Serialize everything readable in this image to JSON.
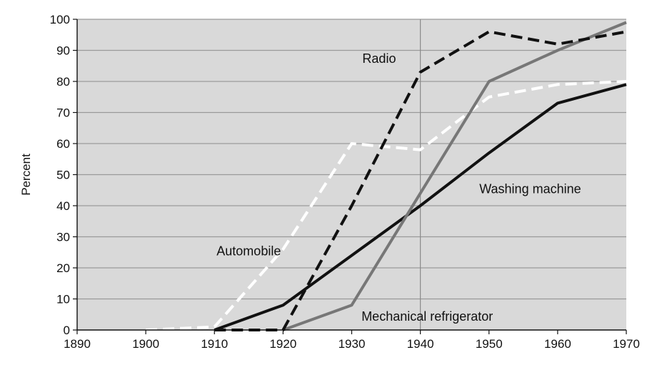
{
  "chart_data": {
    "type": "line",
    "title": "",
    "xlabel": "",
    "ylabel": "Percent",
    "xlim": [
      1890,
      1970
    ],
    "ylim": [
      0,
      100
    ],
    "x_ticks": [
      1890,
      1900,
      1910,
      1920,
      1930,
      1940,
      1950,
      1960,
      1970
    ],
    "y_ticks": [
      0,
      10,
      20,
      30,
      40,
      50,
      60,
      70,
      80,
      90,
      100
    ],
    "grid": true,
    "background_color": "#d9d9d9",
    "reference_line_x": 1940,
    "legend": "none",
    "series": [
      {
        "name": "Automobile",
        "color": "#ffffff",
        "style": "dashed",
        "points": [
          [
            1900,
            0
          ],
          [
            1910,
            1
          ],
          [
            1920,
            26
          ],
          [
            1930,
            60
          ],
          [
            1940,
            58
          ],
          [
            1950,
            75
          ],
          [
            1960,
            79
          ],
          [
            1970,
            80
          ]
        ]
      },
      {
        "name": "Washing machine",
        "color": "#111111",
        "style": "solid",
        "points": [
          [
            1910,
            0
          ],
          [
            1920,
            8
          ],
          [
            1930,
            24
          ],
          [
            1940,
            40
          ],
          [
            1950,
            57
          ],
          [
            1960,
            73
          ],
          [
            1970,
            79
          ]
        ]
      },
      {
        "name": "Mechanical refrigerator",
        "color": "#777777",
        "style": "solid",
        "points": [
          [
            1920,
            0
          ],
          [
            1930,
            8
          ],
          [
            1940,
            44
          ],
          [
            1950,
            80
          ],
          [
            1960,
            90
          ],
          [
            1970,
            99
          ]
        ]
      },
      {
        "name": "Radio",
        "color": "#111111",
        "style": "dashed",
        "points": [
          [
            1910,
            0
          ],
          [
            1920,
            0
          ],
          [
            1930,
            40
          ],
          [
            1940,
            83
          ],
          [
            1950,
            96
          ],
          [
            1960,
            92
          ],
          [
            1970,
            96
          ]
        ]
      }
    ],
    "annotations": [
      {
        "text": "Radio",
        "x": 1934,
        "y": 86
      },
      {
        "text": "Washing machine",
        "x": 1956,
        "y": 44
      },
      {
        "text": "Automobile",
        "x": 1915,
        "y": 24
      },
      {
        "text": "Mechanical refrigerator",
        "x": 1941,
        "y": 3
      }
    ]
  }
}
